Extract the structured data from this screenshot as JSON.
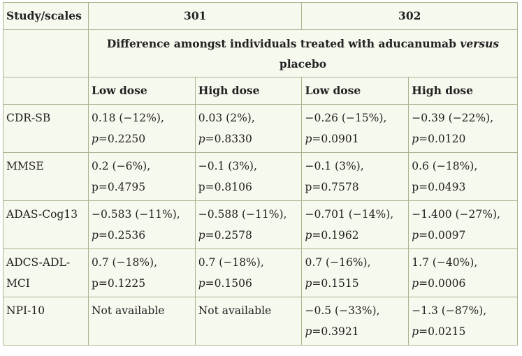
{
  "table": {
    "header_col": "Study/scales",
    "study_a": "301",
    "study_b": "302",
    "diff_prefix": "Difference amongst individuals treated with aducanumab ",
    "diff_italic": "versus",
    "diff_suffix": "placebo",
    "dose_low": "Low dose",
    "dose_high": "High dose",
    "rows": [
      {
        "scale": "CDR-SB",
        "cells": [
          {
            "v": "0.18 (−12%),",
            "p": "=0.2250"
          },
          {
            "v": "0.03 (2%),",
            "p": "=0.8330"
          },
          {
            "v": "−0.26 (−15%),",
            "p": "=0.0901"
          },
          {
            "v": "−0.39 (−22%),",
            "p": "=0.0120"
          }
        ]
      },
      {
        "scale": "MMSE",
        "cells": [
          {
            "v": "0.2 (−6%),",
            "p": "p=0.4795",
            "plain": true
          },
          {
            "v": "−0.1 (3%),",
            "p": "p=0.8106",
            "plain": true
          },
          {
            "v": "−0.1 (3%),",
            "p": "p=0.7578",
            "plain": true
          },
          {
            "v": "0.6 (−18%),",
            "p": "p=0.0493",
            "plain": true
          }
        ]
      },
      {
        "scale": "ADAS-Cog13",
        "cells": [
          {
            "v": "−0.583 (−11%),",
            "p": "=0.2536"
          },
          {
            "v": "−0.588 (−11%),",
            "p": "=0.2578"
          },
          {
            "v": "−0.701 (−14%),",
            "p": "=0.1962"
          },
          {
            "v": "−1.400 (−27%),",
            "p": "=0.0097"
          }
        ]
      },
      {
        "scale": "ADCS-ADL-MCI",
        "cells": [
          {
            "v": "0.7 (−18%),",
            "p": "p=0.1225",
            "plain": true
          },
          {
            "v": "0.7 (−18%),",
            "p": "=0.1506"
          },
          {
            "v": "0.7 (−16%),",
            "p": "=0.1515"
          },
          {
            "v": "1.7 (−40%),",
            "p": "=0.0006"
          }
        ]
      },
      {
        "scale": "NPI-10",
        "cells": [
          {
            "v": "Not available",
            "p": ""
          },
          {
            "v": "Not available",
            "p": ""
          },
          {
            "v": "−0.5 (−33%),",
            "p": "=0.3921"
          },
          {
            "v": "−1.3 (−87%),",
            "p": "=0.0215"
          }
        ]
      }
    ],
    "p_label": "p",
    "colors": {
      "border": "#a9b58f",
      "background": "#f6f9ee",
      "text": "#222222"
    }
  }
}
